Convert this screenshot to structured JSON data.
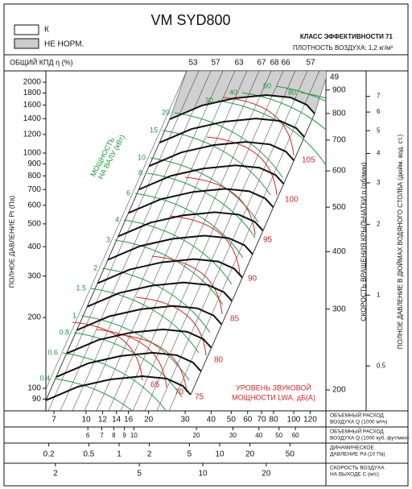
{
  "legend": {
    "k": "К",
    "not_norm": "НЕ НОРМ."
  },
  "title": "VM SYD800",
  "efficiency_class": "КЛАСС ЭФФЕКТИВНОСТИ 71",
  "air_density": "ПЛОТНОСТЬ ВОЗДУХА: 1,2 кг/м³",
  "efficiency": {
    "label": "ОБЩИЙ КПД η (%)",
    "values": [
      53,
      57,
      63,
      67,
      68,
      66,
      57
    ],
    "corner": 49
  },
  "pressure_axis": {
    "label": "ПОЛНОЕ ДАВЛЕНИЕ Pt (Па)",
    "ticks": [
      90,
      100,
      200,
      300,
      400,
      500,
      600,
      700,
      800,
      900,
      1000,
      1200,
      1400,
      1600,
      1800,
      2000
    ]
  },
  "speed_axis": {
    "label": "СКОРОСТЬ ВРАЩЕНИЯ КРЫЛЬЧАТКИ n (об/мин)",
    "ticks": [
      200,
      300,
      400,
      500,
      600,
      700,
      800,
      900
    ]
  },
  "inch_axis": {
    "label": "ПОЛНОЕ ДАВЛЕНИЕ В ДЮЙМАХ ВОДЯНОГО СТОЛБА (дюйм. вод. ст.)",
    "ticks": [
      0.5,
      1,
      2,
      3,
      4,
      5,
      6,
      7
    ]
  },
  "power": {
    "label_lines": [
      "МОЩНОСТЬ",
      "НА ВАЛУ (кВт)"
    ],
    "values": [
      0.4,
      0.6,
      0.8,
      1,
      1.5,
      2,
      3,
      4,
      6,
      8,
      10,
      15,
      20,
      30,
      40,
      60,
      80
    ]
  },
  "sound": {
    "label_lines": [
      "УРОВЕНЬ ЗВУКОВОЙ",
      "МОЩНОСТИ LWA, дБ(A)"
    ],
    "values": [
      65,
      70,
      75,
      80,
      85,
      90,
      95,
      100,
      105
    ]
  },
  "scales": [
    {
      "label_lines": [
        "ОБЪЕМНЫЙ РАСХОД",
        "ВОЗДУХА Q (1000 м³/ч)"
      ],
      "ticks": [
        7,
        10,
        12,
        14,
        16,
        20,
        30,
        40,
        50,
        60,
        70,
        80,
        100,
        120
      ]
    },
    {
      "label_lines": [
        "ОБЪЕМНЫЙ РАСХОД",
        "ВОЗДУХА Q (1000 куб. фут/мин)"
      ],
      "ticks": [
        6,
        7,
        8,
        9,
        10,
        20,
        30,
        40,
        50,
        60
      ]
    },
    {
      "label_lines": [
        "ДИНАМИЧЕСКОЕ",
        "ДАВЛЕНИЕ Pd (10 Па)"
      ],
      "ticks": [
        0.2,
        0.5,
        1,
        2,
        5,
        10,
        20,
        50
      ]
    },
    {
      "label_lines": [
        "СКОРОСТЬ ВОЗДУХА",
        "НА ВЫХОДЕ C (м/с)"
      ],
      "ticks": [
        2,
        5,
        10,
        20
      ]
    }
  ]
}
